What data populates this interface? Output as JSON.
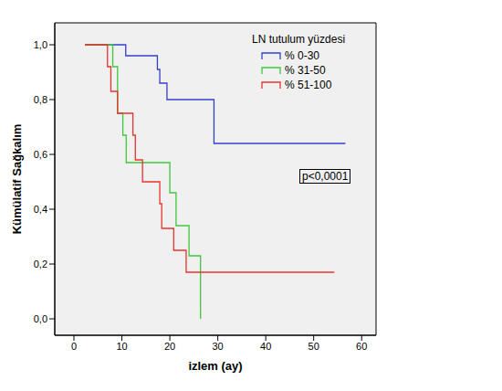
{
  "chart_data": {
    "type": "line",
    "x_label": "izlem (ay)",
    "y_label": "Kümülatif Sağkalım",
    "legend_title": "LN tutulum yüzdesi",
    "annotation": "p<0,0001",
    "xlim": [
      -4,
      63
    ],
    "ylim": [
      -0.06,
      1.08
    ],
    "xticks": [
      0,
      10,
      20,
      30,
      40,
      50,
      60
    ],
    "yticks": [
      {
        "value": 0,
        "label": "0,0"
      },
      {
        "value": 0.2,
        "label": "0,2"
      },
      {
        "value": 0.4,
        "label": "0,4"
      },
      {
        "value": 0.6,
        "label": "0,6"
      },
      {
        "value": 0.8,
        "label": "0,8"
      },
      {
        "value": 1,
        "label": "1,0"
      }
    ],
    "grid": false,
    "legend": "upper right",
    "line_style": "step",
    "series": [
      {
        "name": "% 0-30",
        "color": "#3340c8",
        "x": [
          2.3,
          10.8,
          17.4,
          17.9,
          19.4,
          29.2,
          56.6
        ],
        "values": [
          1,
          0.96,
          0.91,
          0.86,
          0.8,
          0.64,
          0.64
        ]
      },
      {
        "name": "% 31-50",
        "color": "#3cc83c",
        "x": [
          2.3,
          8.1,
          9.1,
          10.2,
          10.9,
          20,
          21.3,
          24,
          26.4
        ],
        "values": [
          1,
          0.92,
          0.75,
          0.67,
          0.57,
          0.46,
          0.34,
          0.23,
          0
        ]
      },
      {
        "name": "% 51-100",
        "color": "#e8322e",
        "x": [
          2.3,
          7,
          7.7,
          9.1,
          12.3,
          12.8,
          14.3,
          17.9,
          18.3,
          20.8,
          23.4,
          54.3
        ],
        "values": [
          1,
          0.92,
          0.83,
          0.75,
          0.67,
          0.58,
          0.5,
          0.42,
          0.33,
          0.25,
          0.17,
          0.17
        ]
      }
    ]
  }
}
